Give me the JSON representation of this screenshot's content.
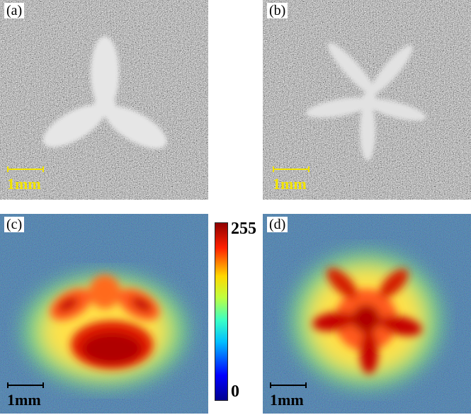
{
  "panels": {
    "a": {
      "label": "(a)",
      "scale_text": "1mm",
      "scale_color": "#f2e400"
    },
    "b": {
      "label": "(b)",
      "scale_text": "1mm",
      "scale_color": "#f2e400"
    },
    "c": {
      "label": "(c)",
      "scale_text": "1mm",
      "scale_color": "#000000"
    },
    "d": {
      "label": "(d)",
      "scale_text": "1mm",
      "scale_color": "#000000"
    }
  },
  "colorbar": {
    "max_label": "255",
    "min_label": "0"
  }
}
